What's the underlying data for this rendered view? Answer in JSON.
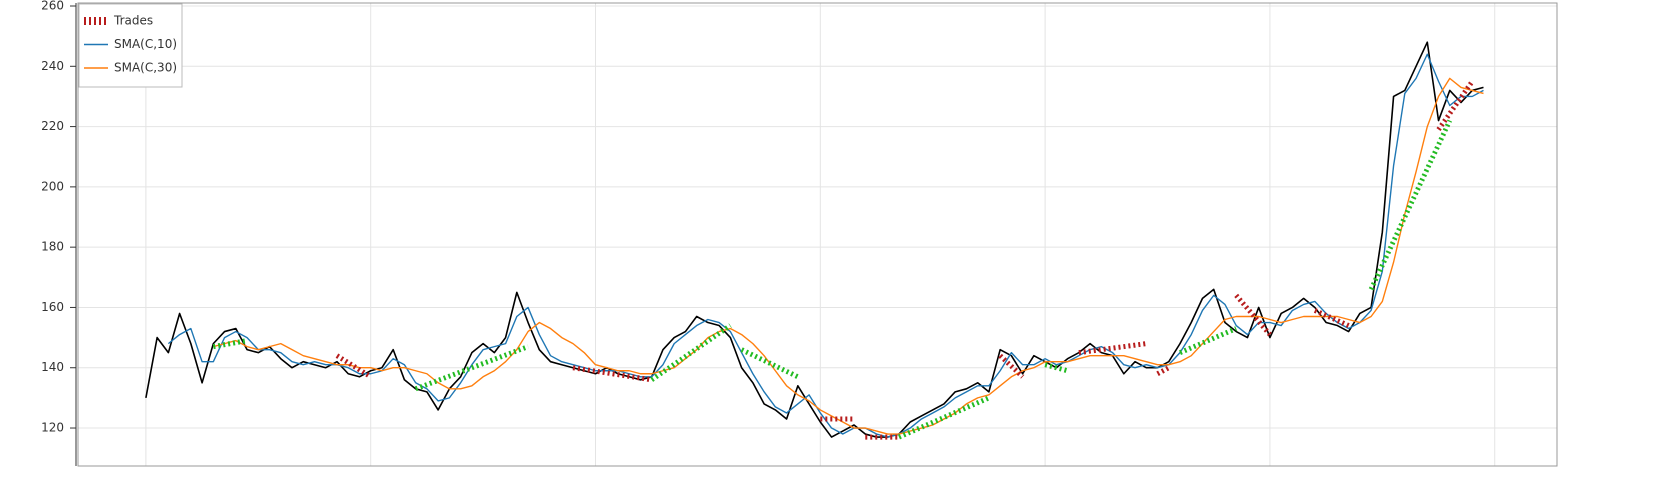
{
  "chart_data": {
    "type": "line",
    "x": [
      0,
      5,
      10,
      15,
      20,
      25,
      30,
      35,
      40,
      45,
      50,
      55,
      60,
      65,
      70,
      75,
      80,
      85,
      90,
      95,
      100,
      105,
      110,
      115,
      120,
      125,
      130,
      135,
      140,
      145,
      150,
      155,
      160,
      165,
      170,
      175,
      180,
      185,
      190,
      195,
      200,
      205,
      210,
      215,
      220,
      225,
      230,
      235,
      240,
      245,
      250,
      255,
      260,
      265,
      270,
      275,
      280,
      285,
      290,
      295,
      300,
      305,
      310,
      315,
      320,
      325,
      330,
      335,
      340,
      345,
      350,
      355,
      360,
      365,
      370,
      375,
      380,
      385,
      390,
      395,
      400,
      405,
      410,
      415,
      420,
      425,
      430,
      435,
      440,
      445,
      450,
      455,
      460,
      465,
      470,
      475,
      480,
      485,
      490,
      495,
      500,
      505,
      510,
      515,
      520,
      525,
      530,
      535,
      540,
      545,
      550,
      555,
      560,
      565,
      570,
      575,
      580,
      585,
      590,
      595
    ],
    "series": [
      {
        "color": "#000000",
        "values": [
          130,
          150,
          145,
          158,
          148,
          135,
          148,
          152,
          153,
          146,
          145,
          147,
          143,
          140,
          142,
          141,
          140,
          142,
          138,
          137,
          139,
          140,
          146,
          136,
          133,
          132,
          126,
          133,
          137,
          145,
          148,
          145,
          150,
          165,
          155,
          146,
          142,
          141,
          140,
          139,
          138,
          140,
          138,
          137,
          136,
          137,
          146,
          150,
          152,
          157,
          155,
          154,
          150,
          140,
          135,
          128,
          126,
          123,
          134,
          128,
          122,
          117,
          119,
          121,
          118,
          117,
          117,
          118,
          122,
          124,
          126,
          128,
          132,
          133,
          135,
          132,
          146,
          144,
          138,
          144,
          142,
          140,
          143,
          145,
          148,
          145,
          144,
          138,
          142,
          140,
          140,
          142,
          148,
          155,
          163,
          166,
          155,
          152,
          150,
          160,
          150,
          158,
          160,
          163,
          160,
          155,
          154,
          152,
          158,
          160,
          185,
          230,
          232,
          240,
          248,
          222,
          232,
          228,
          232,
          233
        ]
      },
      {
        "name": "SMA(C,10)",
        "color": "#1f77b4",
        "values": [
          null,
          null,
          148,
          151,
          153,
          142,
          142,
          150,
          152,
          150,
          146,
          146,
          145,
          142,
          141,
          142,
          141,
          141,
          140,
          138,
          138,
          139,
          143,
          141,
          135,
          133,
          129,
          130,
          135,
          141,
          146,
          147,
          148,
          157,
          160,
          151,
          144,
          142,
          141,
          140,
          139,
          139,
          139,
          138,
          137,
          137,
          141,
          148,
          151,
          154,
          156,
          155,
          152,
          145,
          138,
          132,
          127,
          125,
          128,
          131,
          125,
          120,
          118,
          120,
          120,
          118,
          117,
          118,
          120,
          123,
          125,
          127,
          130,
          132,
          134,
          134,
          139,
          145,
          141,
          141,
          143,
          141,
          142,
          144,
          146,
          147,
          145,
          141,
          140,
          141,
          140,
          141,
          145,
          151,
          159,
          164,
          161,
          154,
          151,
          155,
          155,
          154,
          159,
          161,
          162,
          158,
          155,
          153,
          155,
          159,
          172,
          207,
          231,
          236,
          244,
          235,
          227,
          230,
          230,
          232
        ]
      },
      {
        "name": "SMA(C,30)",
        "color": "#ff7f0e",
        "values": [
          null,
          null,
          null,
          null,
          null,
          null,
          147,
          148,
          149,
          147,
          146,
          147,
          148,
          146,
          144,
          143,
          142,
          141,
          141,
          140,
          140,
          139,
          140,
          140,
          139,
          138,
          135,
          133,
          133,
          134,
          137,
          139,
          142,
          146,
          152,
          155,
          153,
          150,
          148,
          145,
          141,
          140,
          139,
          139,
          138,
          138,
          139,
          140,
          143,
          146,
          150,
          152,
          153,
          151,
          148,
          144,
          139,
          134,
          131,
          129,
          126,
          124,
          122,
          120,
          120,
          119,
          118,
          118,
          119,
          120,
          121,
          123,
          125,
          128,
          130,
          131,
          134,
          137,
          139,
          140,
          142,
          142,
          142,
          143,
          144,
          144,
          144,
          144,
          143,
          142,
          141,
          141,
          142,
          144,
          148,
          152,
          156,
          157,
          157,
          157,
          156,
          155,
          156,
          157,
          157,
          157,
          157,
          156,
          155,
          157,
          162,
          175,
          191,
          205,
          220,
          230,
          236,
          233,
          232,
          231
        ]
      }
    ],
    "trades": {
      "name": "Trades",
      "color": "#b71c1c",
      "items": [
        {
          "entry_x": 30,
          "entry_price": 147,
          "exit_x": 45,
          "exit_price": 149,
          "color": "#22bb22"
        },
        {
          "entry_x": 85,
          "entry_price": 144,
          "exit_x": 100,
          "exit_price": 137,
          "color": "#b71c1c"
        },
        {
          "entry_x": 120,
          "entry_price": 133,
          "exit_x": 170,
          "exit_price": 147,
          "color": "#22bb22"
        },
        {
          "entry_x": 190,
          "entry_price": 140,
          "exit_x": 225,
          "exit_price": 136,
          "color": "#b71c1c"
        },
        {
          "entry_x": 225,
          "entry_price": 136,
          "exit_x": 260,
          "exit_price": 154,
          "color": "#22bb22"
        },
        {
          "entry_x": 265,
          "entry_price": 146,
          "exit_x": 290,
          "exit_price": 137,
          "color": "#22bb22"
        },
        {
          "entry_x": 300,
          "entry_price": 123,
          "exit_x": 315,
          "exit_price": 123,
          "color": "#b71c1c"
        },
        {
          "entry_x": 320,
          "entry_price": 117,
          "exit_x": 335,
          "exit_price": 117,
          "color": "#b71c1c"
        },
        {
          "entry_x": 335,
          "entry_price": 117,
          "exit_x": 375,
          "exit_price": 130,
          "color": "#22bb22"
        },
        {
          "entry_x": 380,
          "entry_price": 144,
          "exit_x": 390,
          "exit_price": 137,
          "color": "#b71c1c"
        },
        {
          "entry_x": 400,
          "entry_price": 141,
          "exit_x": 410,
          "exit_price": 139,
          "color": "#22bb22"
        },
        {
          "entry_x": 415,
          "entry_price": 145,
          "exit_x": 445,
          "exit_price": 148,
          "color": "#b71c1c"
        },
        {
          "entry_x": 450,
          "entry_price": 138,
          "exit_x": 455,
          "exit_price": 140,
          "color": "#b71c1c"
        },
        {
          "entry_x": 460,
          "entry_price": 145,
          "exit_x": 485,
          "exit_price": 153,
          "color": "#22bb22"
        },
        {
          "entry_x": 485,
          "entry_price": 164,
          "exit_x": 500,
          "exit_price": 151,
          "color": "#b71c1c"
        },
        {
          "entry_x": 520,
          "entry_price": 159,
          "exit_x": 535,
          "exit_price": 154,
          "color": "#b71c1c"
        },
        {
          "entry_x": 545,
          "entry_price": 166,
          "exit_x": 580,
          "exit_price": 222,
          "color": "#22bb22"
        },
        {
          "entry_x": 575,
          "entry_price": 219,
          "exit_x": 590,
          "exit_price": 235,
          "color": "#b71c1c"
        }
      ]
    },
    "xlim": [
      -30.2,
      627.7
    ],
    "xticks": [
      0,
      100,
      200,
      300,
      400,
      500,
      600
    ],
    "ylim": [
      107.4,
      261
    ],
    "yticks": [
      120,
      140,
      160,
      180,
      200,
      220,
      240,
      260
    ],
    "grid": true
  }
}
